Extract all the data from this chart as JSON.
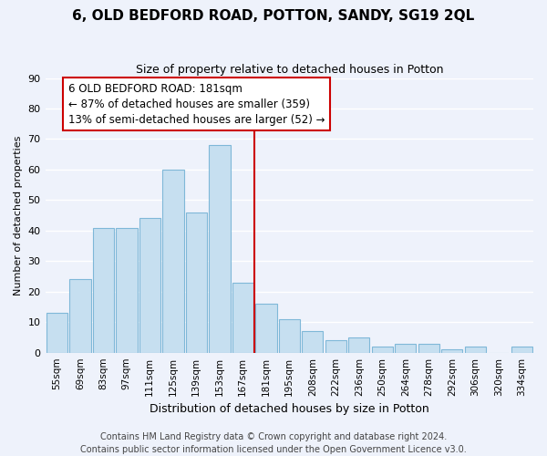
{
  "title": "6, OLD BEDFORD ROAD, POTTON, SANDY, SG19 2QL",
  "subtitle": "Size of property relative to detached houses in Potton",
  "xlabel": "Distribution of detached houses by size in Potton",
  "ylabel": "Number of detached properties",
  "bin_labels": [
    "55sqm",
    "69sqm",
    "83sqm",
    "97sqm",
    "111sqm",
    "125sqm",
    "139sqm",
    "153sqm",
    "167sqm",
    "181sqm",
    "195sqm",
    "208sqm",
    "222sqm",
    "236sqm",
    "250sqm",
    "264sqm",
    "278sqm",
    "292sqm",
    "306sqm",
    "320sqm",
    "334sqm"
  ],
  "bar_heights": [
    13,
    24,
    41,
    41,
    44,
    60,
    46,
    68,
    23,
    16,
    11,
    7,
    4,
    5,
    2,
    3,
    3,
    1,
    2,
    0,
    2
  ],
  "bar_color": "#c6dff0",
  "bar_edge_color": "#7fb8d8",
  "vline_pos": 8.5,
  "vline_color": "#cc0000",
  "annotation_text": "6 OLD BEDFORD ROAD: 181sqm\n← 87% of detached houses are smaller (359)\n13% of semi-detached houses are larger (52) →",
  "annotation_box_facecolor": "#ffffff",
  "annotation_box_edgecolor": "#cc0000",
  "ylim": [
    0,
    90
  ],
  "yticks": [
    0,
    10,
    20,
    30,
    40,
    50,
    60,
    70,
    80,
    90
  ],
  "footer1": "Contains HM Land Registry data © Crown copyright and database right 2024.",
  "footer2": "Contains public sector information licensed under the Open Government Licence v3.0.",
  "bg_color": "#eef2fb",
  "grid_color": "#ffffff",
  "title_fontsize": 11,
  "subtitle_fontsize": 9,
  "ylabel_fontsize": 8,
  "xlabel_fontsize": 9,
  "tick_fontsize": 8,
  "xtick_fontsize": 7.5,
  "footer_fontsize": 7,
  "annot_fontsize": 8.5
}
